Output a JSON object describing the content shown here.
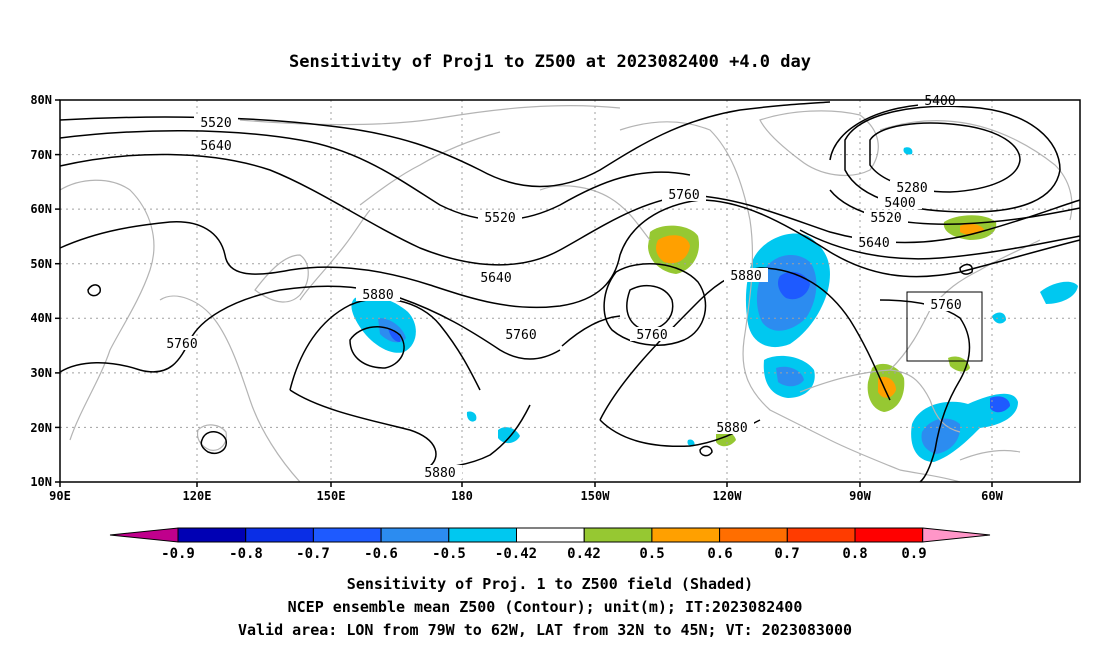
{
  "title": "Sensitivity of Proj1 to Z500 at 2023082400 +4.0 day",
  "lat_labels": [
    "80N",
    "70N",
    "60N",
    "50N",
    "40N",
    "30N",
    "20N",
    "10N"
  ],
  "lon_labels": [
    "90E",
    "120E",
    "150E",
    "180",
    "150W",
    "120W",
    "90W",
    "60W"
  ],
  "contour_labels": {
    "c5400_top": "5400",
    "c5520_w": "5520",
    "c5640_w": "5640",
    "c5520_c": "5520",
    "c5760_nc": "5760",
    "c5280_e": "5280",
    "c5400_e": "5400",
    "c5520_e": "5520",
    "c5640_e": "5640",
    "c5640_c": "5640",
    "c5880_w": "5880",
    "c5880_c": "5880",
    "c5760_e": "5760",
    "c5760_c1": "5760",
    "c5760_c2": "5760",
    "c5760_w": "5760",
    "c5880_s": "5880",
    "c5880_b": "5880"
  },
  "colorbar": {
    "labels": [
      "-0.9",
      "-0.8",
      "-0.7",
      "-0.6",
      "-0.5",
      "-0.42",
      "0.42",
      "0.5",
      "0.6",
      "0.7",
      "0.8",
      "0.9"
    ],
    "colors": [
      "#c0008c",
      "#0000b4",
      "#0a2ee6",
      "#1e5aff",
      "#2c8cf0",
      "#00c8f0",
      "#ffffff",
      "#96c832",
      "#ffa000",
      "#ff6e00",
      "#ff3c00",
      "#ff0000",
      "#ff96c8"
    ]
  },
  "captions": {
    "line1": "Sensitivity of Proj. 1 to Z500 field (Shaded)",
    "line2": "NCEP ensemble mean Z500 (Contour); unit(m); IT:2023082400",
    "line3": "Valid area: LON from 79W to 62W, LAT from 32N to 45N; VT: 2023083000"
  }
}
